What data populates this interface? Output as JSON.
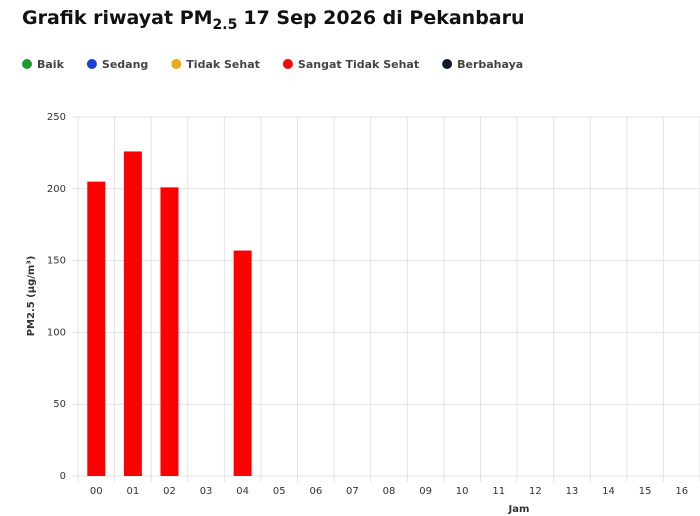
{
  "chart_data": {
    "type": "bar",
    "title_prefix": "Grafik riwayat PM",
    "title_subscript": "2.5",
    "title_suffix": "17 Sep 2026 di Pekanbaru",
    "y_label": "PM2.5 (µg/m³)",
    "x_label": "Jam",
    "categories": [
      "00",
      "01",
      "02",
      "03",
      "04",
      "05",
      "06",
      "07",
      "08",
      "09",
      "10",
      "11",
      "12",
      "13",
      "14",
      "15",
      "16"
    ],
    "series": [
      {
        "name": "Baik",
        "color": "#1e9a2e",
        "values": [
          null,
          null,
          null,
          null,
          null,
          null,
          null,
          null,
          null,
          null,
          null,
          null,
          null,
          null,
          null,
          null,
          null
        ]
      },
      {
        "name": "Sedang",
        "color": "#1c3fcf",
        "values": [
          null,
          null,
          null,
          null,
          null,
          null,
          null,
          null,
          null,
          null,
          null,
          null,
          null,
          null,
          null,
          null,
          null
        ]
      },
      {
        "name": "Tidak Sehat",
        "color": "#e9ab17",
        "values": [
          null,
          null,
          null,
          null,
          null,
          null,
          null,
          null,
          null,
          null,
          null,
          null,
          null,
          null,
          null,
          null,
          null
        ]
      },
      {
        "name": "Sangat Tidak Sehat",
        "color": "#ff0000",
        "values": [
          205,
          226,
          201,
          null,
          157,
          null,
          null,
          null,
          null,
          null,
          null,
          null,
          null,
          null,
          null,
          null,
          null
        ]
      },
      {
        "name": "Berbahaya",
        "color": "#111827",
        "values": [
          null,
          null,
          null,
          null,
          null,
          null,
          null,
          null,
          null,
          null,
          null,
          null,
          null,
          null,
          null,
          null,
          null
        ]
      }
    ],
    "ylim": [
      0,
      250
    ],
    "yticks": [
      0,
      50,
      100,
      150,
      200,
      250
    ],
    "grid": true
  }
}
